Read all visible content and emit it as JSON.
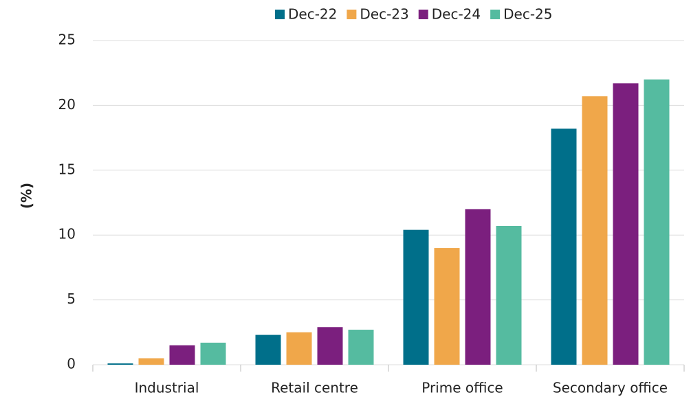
{
  "chart_data": {
    "type": "bar",
    "y_label": "(%)",
    "categories": [
      "Industrial",
      "Retail centre",
      "Prime office",
      "Secondary office"
    ],
    "series": [
      {
        "name": "Dec-22",
        "color": "#006f8a",
        "values": [
          0.1,
          2.3,
          10.4,
          18.2
        ]
      },
      {
        "name": "Dec-23",
        "color": "#f0a74a",
        "values": [
          0.5,
          2.5,
          9.0,
          20.7
        ]
      },
      {
        "name": "Dec-24",
        "color": "#7b1f7e",
        "values": [
          1.5,
          2.9,
          12.0,
          21.7
        ]
      },
      {
        "name": "Dec-25",
        "color": "#55bba0",
        "values": [
          1.7,
          2.7,
          10.7,
          22.0
        ]
      }
    ],
    "ylim": [
      0,
      25
    ],
    "yticks": [
      0,
      5,
      10,
      15,
      20,
      25
    ],
    "grid": true,
    "legend": "top"
  }
}
